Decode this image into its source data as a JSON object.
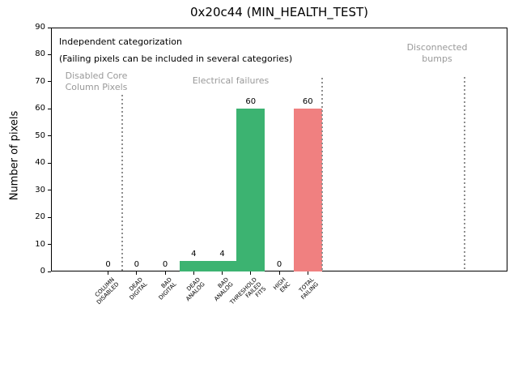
{
  "chart_data": {
    "type": "bar",
    "title": "0x20c44 (MIN_HEALTH_TEST)",
    "xlabel": "",
    "ylabel": "Number of pixels",
    "ylim": [
      0,
      90
    ],
    "ytick_step": 10,
    "ytick_labels": [
      "0",
      "10",
      "20",
      "30",
      "40",
      "50",
      "60",
      "70",
      "80",
      "90"
    ],
    "grid": false,
    "legend": null,
    "categories": [
      "COLUMN\nDISABLED",
      "DEAD\nDIGITAL",
      "BAD\nDIGITAL",
      "DEAD\nANALOG",
      "BAD\nANALOG",
      "THRESHOLD\nFAILED\nFITS",
      "HIGH\nENC",
      "TOTAL\nFAILING"
    ],
    "values": [
      0,
      0,
      0,
      4,
      4,
      60,
      0,
      60
    ],
    "value_labels": [
      "0",
      "0",
      "0",
      "4",
      "4",
      "60",
      "0",
      "60"
    ],
    "bar_colors": [
      "#3CB371",
      "#3CB371",
      "#3CB371",
      "#3CB371",
      "#3CB371",
      "#3CB371",
      "#3CB371",
      "#F08080"
    ],
    "dividers_x": [
      0.5,
      7.5,
      12.5
    ],
    "annotations": {
      "note_line1": "Independent categorization",
      "note_line2": "(Failing pixels can be included in several categories)",
      "regions": [
        {
          "label": "Disabled Core\nColumn Pixels"
        },
        {
          "label": "Electrical failures"
        },
        {
          "label": "Disconnected\nbumps"
        }
      ]
    }
  },
  "colors": {
    "bar_green": "#3CB371",
    "bar_red": "#F08080",
    "region_label_gray": "#999999",
    "divider_gray": "#8E8E8E",
    "axis": "#000000",
    "background": "#FFFFFF"
  }
}
